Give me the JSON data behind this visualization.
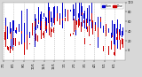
{
  "background_color": "#d8d8d8",
  "plot_bg_color": "#ffffff",
  "num_days": 365,
  "seed": 42,
  "blue_color": "#0000cc",
  "red_color": "#cc0000",
  "legend_blue_label": "Hum",
  "legend_red_label": "Dew",
  "ylim": [
    -20,
    100
  ],
  "grid_color": "#aaaaaa",
  "tick_fontsize": 2.5,
  "bar_width": 0.5
}
